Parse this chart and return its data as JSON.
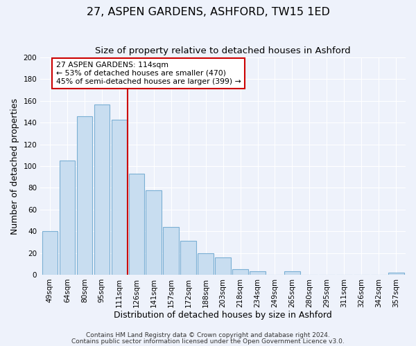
{
  "title": "27, ASPEN GARDENS, ASHFORD, TW15 1ED",
  "subtitle": "Size of property relative to detached houses in Ashford",
  "xlabel": "Distribution of detached houses by size in Ashford",
  "ylabel": "Number of detached properties",
  "bar_labels": [
    "49sqm",
    "64sqm",
    "80sqm",
    "95sqm",
    "111sqm",
    "126sqm",
    "141sqm",
    "157sqm",
    "172sqm",
    "188sqm",
    "203sqm",
    "218sqm",
    "234sqm",
    "249sqm",
    "265sqm",
    "280sqm",
    "295sqm",
    "311sqm",
    "326sqm",
    "342sqm",
    "357sqm"
  ],
  "bar_values": [
    40,
    105,
    146,
    157,
    143,
    93,
    78,
    44,
    31,
    20,
    16,
    5,
    3,
    0,
    3,
    0,
    0,
    0,
    0,
    0,
    2
  ],
  "bar_color": "#c8ddf0",
  "bar_edge_color": "#7aafd4",
  "vline_x": 4.5,
  "vline_color": "#cc0000",
  "annotation_text": "27 ASPEN GARDENS: 114sqm\n← 53% of detached houses are smaller (470)\n45% of semi-detached houses are larger (399) →",
  "annotation_box_facecolor": "#ffffff",
  "annotation_box_edgecolor": "#cc0000",
  "ylim": [
    0,
    200
  ],
  "yticks": [
    0,
    20,
    40,
    60,
    80,
    100,
    120,
    140,
    160,
    180,
    200
  ],
  "footer_line1": "Contains HM Land Registry data © Crown copyright and database right 2024.",
  "footer_line2": "Contains public sector information licensed under the Open Government Licence v3.0.",
  "bg_color": "#eef2fb",
  "plot_bg_color": "#eef2fb",
  "grid_color": "#ffffff",
  "title_fontsize": 11.5,
  "subtitle_fontsize": 9.5,
  "axis_label_fontsize": 9,
  "tick_fontsize": 7.5,
  "annotation_fontsize": 7.8,
  "footer_fontsize": 6.5
}
